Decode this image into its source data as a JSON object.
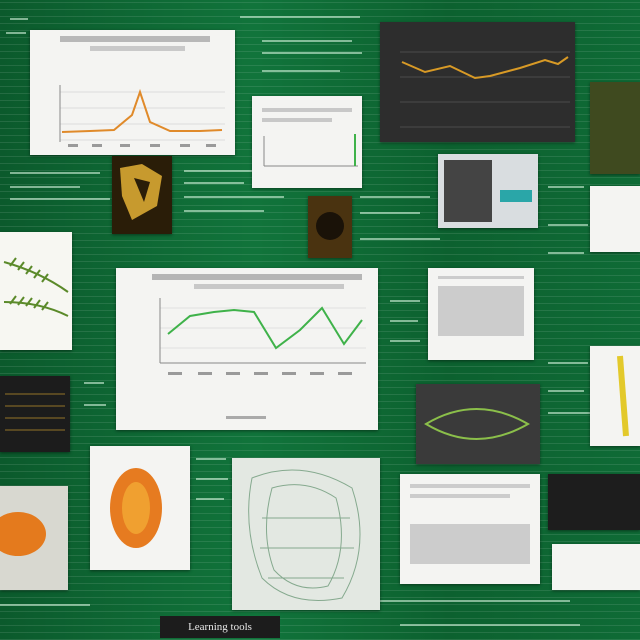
{
  "banner": {
    "text": "Learning tools"
  },
  "colors": {
    "background": "#0f6b36",
    "orange": "#e08a2a",
    "green": "#3fb24a",
    "dark_panel": "#2d2d2d"
  },
  "icons": {
    "leaf_photo": "fern-leaf-icon",
    "cell_photo": "orange-cell-icon",
    "mesh_photo": "wireframe-mesh-icon",
    "sample_photo": "dark-sample-icon"
  }
}
